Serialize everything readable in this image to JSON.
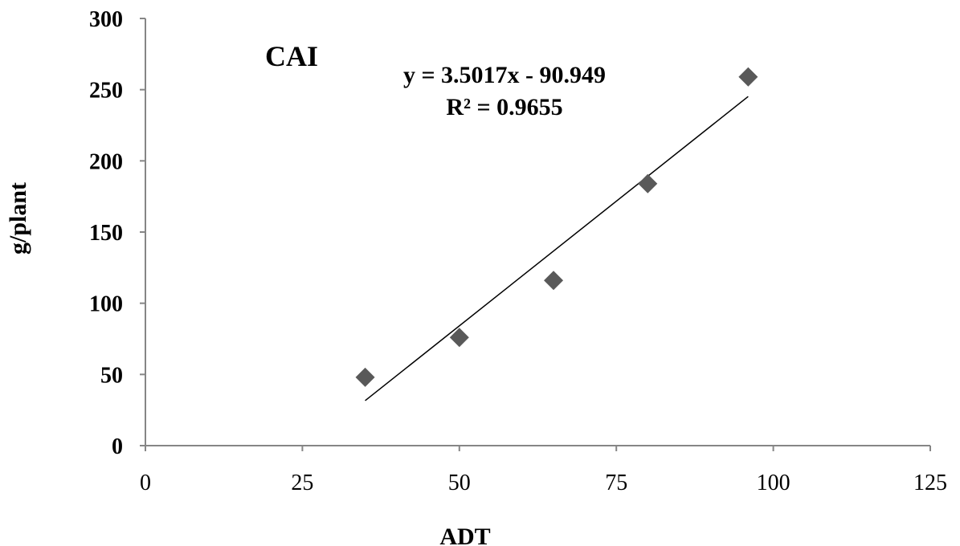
{
  "chart_data": {
    "type": "scatter",
    "title": "CAI",
    "xlabel": "ADT",
    "ylabel": "g/plant",
    "xlim": [
      0,
      125
    ],
    "ylim": [
      0,
      300
    ],
    "x_ticks": [
      "0",
      "25",
      "50",
      "75",
      "100",
      "125"
    ],
    "y_ticks": [
      "0",
      "50",
      "100",
      "150",
      "200",
      "250",
      "300"
    ],
    "grid": false,
    "series": [
      {
        "marker": "diamond",
        "color": "#595959",
        "points": [
          {
            "x": 35,
            "y": 48
          },
          {
            "x": 50,
            "y": 76
          },
          {
            "x": 65,
            "y": 116
          },
          {
            "x": 80,
            "y": 184
          },
          {
            "x": 96,
            "y": 259
          }
        ]
      }
    ],
    "trendline": {
      "slope": 3.5017,
      "intercept": -90.949,
      "x_range": [
        35,
        96
      ],
      "color": "#000000",
      "equation_label": "y = 3.5017x - 90.949",
      "r2_label": "R² = 0.9655"
    }
  }
}
